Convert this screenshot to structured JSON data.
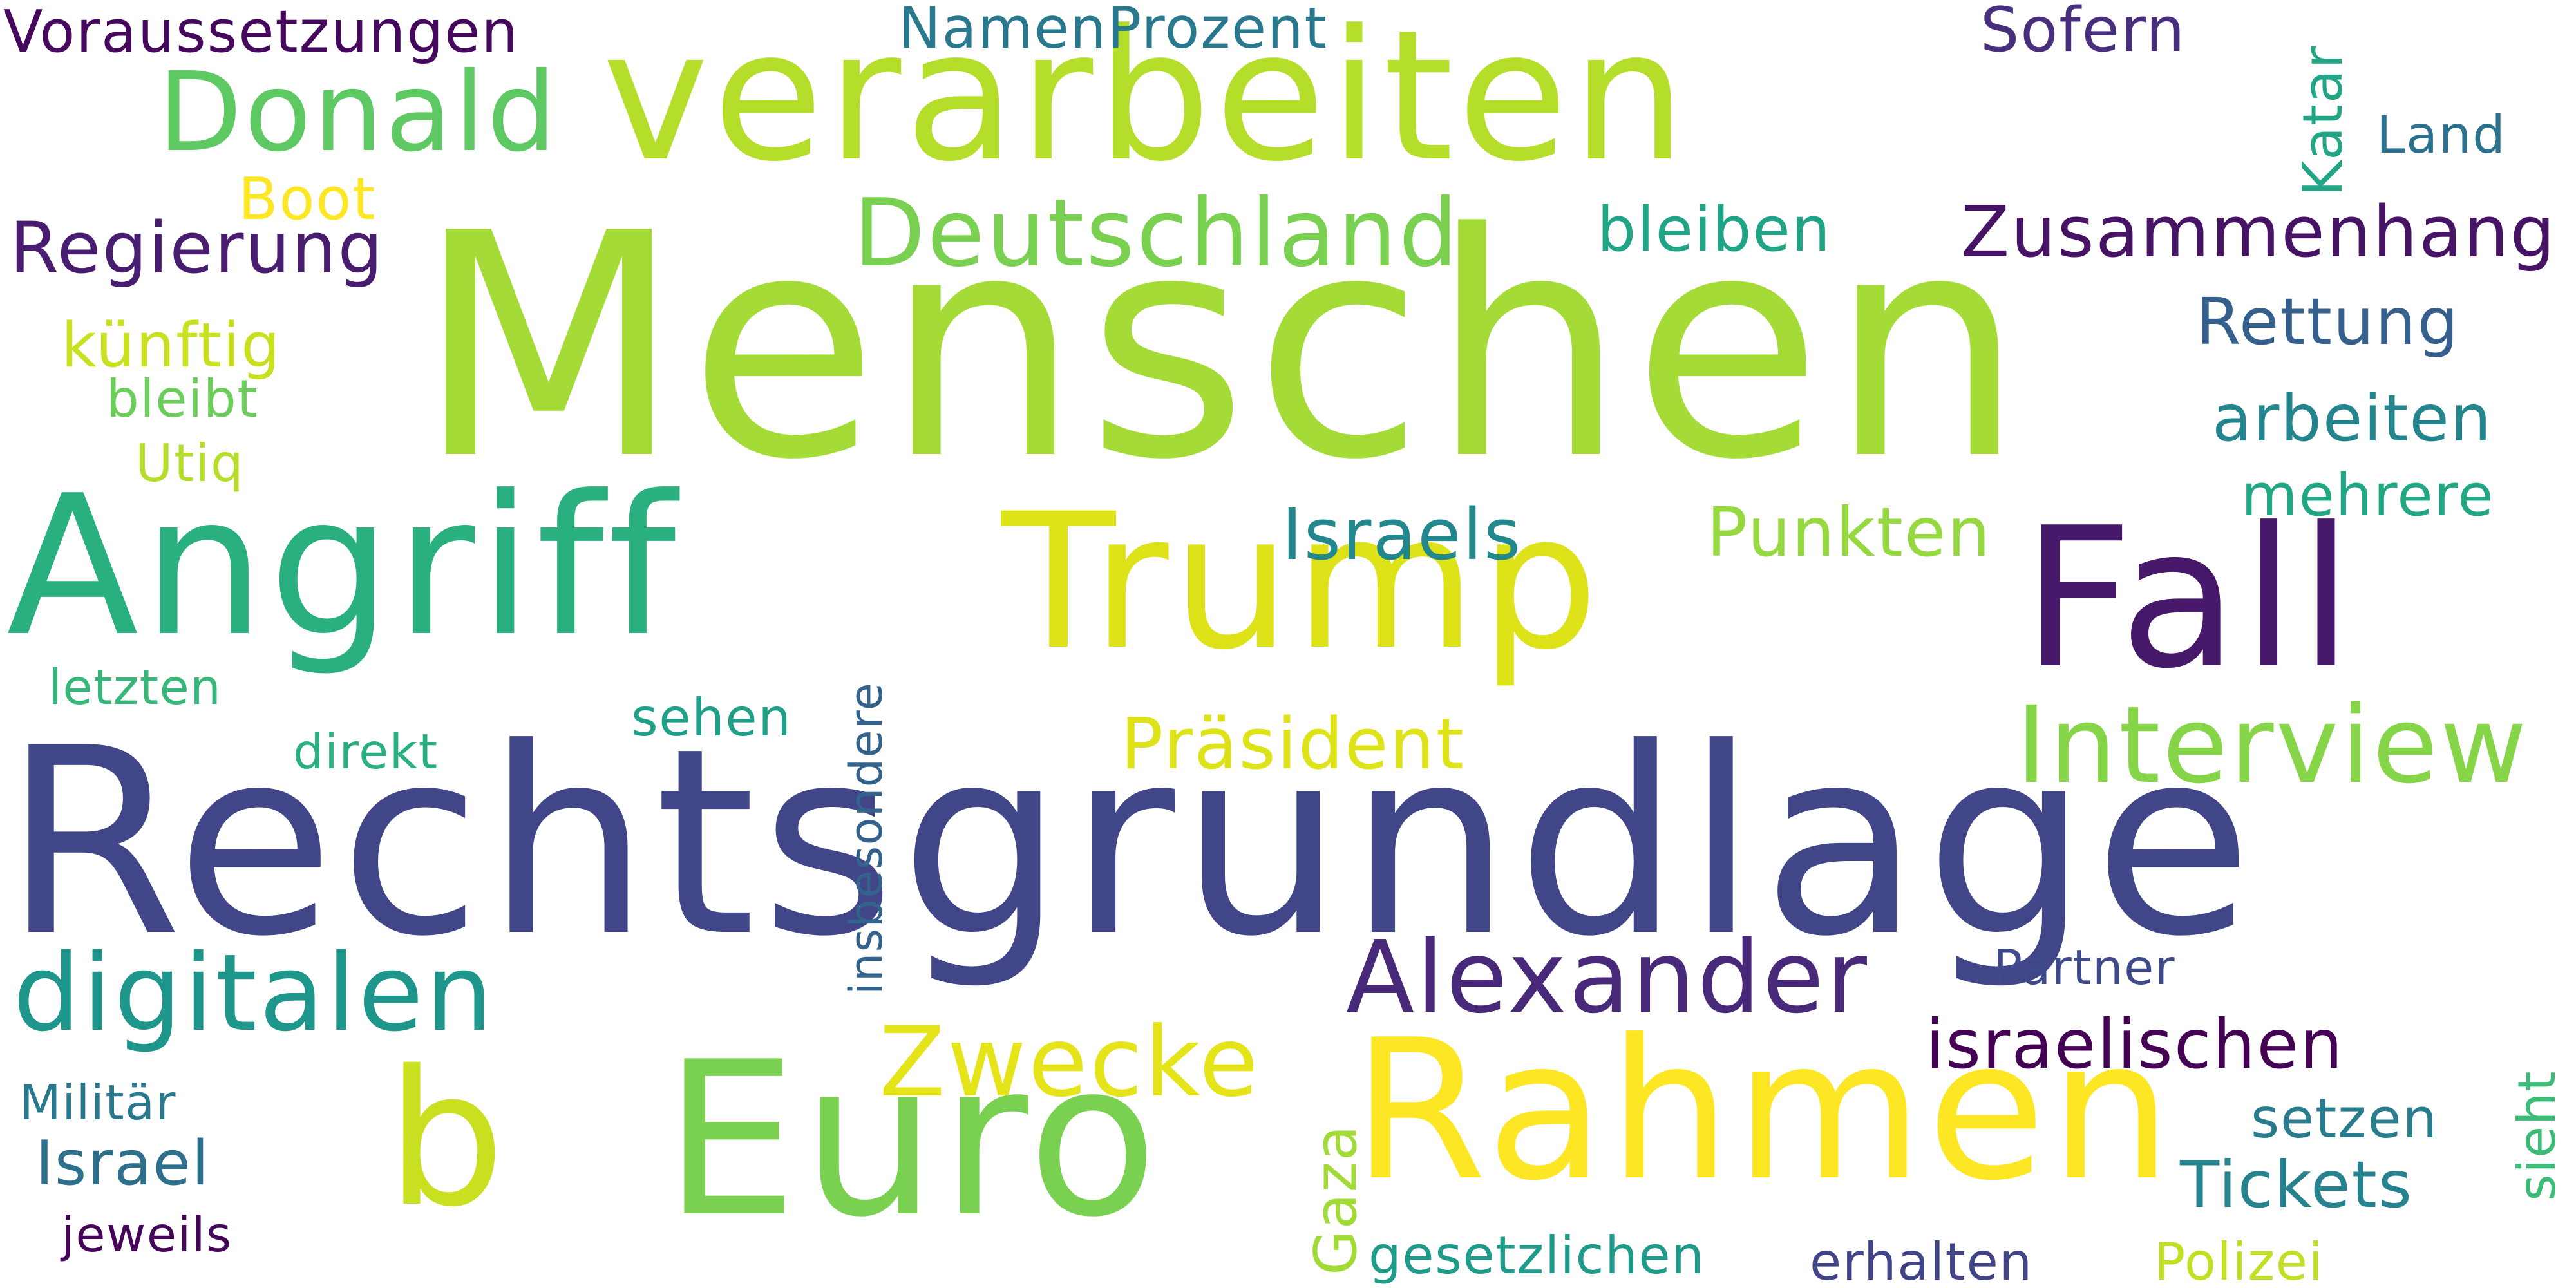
{
  "words": {
    "menschen": {
      "text": "Menschen",
      "color": "#a5db36"
    },
    "rechtsgrundlage": {
      "text": "Rechtsgrundlage",
      "color": "#404688"
    },
    "verarbeiten": {
      "text": "verarbeiten",
      "color": "#b5de2b"
    },
    "angriff": {
      "text": "Angriff",
      "color": "#2ab07f"
    },
    "trump": {
      "text": "Trump",
      "color": "#dde318"
    },
    "fall": {
      "text": "Fall",
      "color": "#46196b"
    },
    "euro": {
      "text": "Euro",
      "color": "#7ad151"
    },
    "b": {
      "text": "b",
      "color": "#c8e020"
    },
    "rahmen": {
      "text": "Rahmen",
      "color": "#fde725"
    },
    "donald": {
      "text": "Donald",
      "color": "#5ec962"
    },
    "deutschland": {
      "text": "Deutschland",
      "color": "#7ad151"
    },
    "digitalen": {
      "text": "digitalen",
      "color": "#1f968b"
    },
    "alexander": {
      "text": "Alexander",
      "color": "#482878"
    },
    "interview": {
      "text": "Interview",
      "color": "#86d549"
    },
    "zwecke": {
      "text": "Zwecke",
      "color": "#e5e419"
    },
    "praesident": {
      "text": "Präsident",
      "color": "#dde318"
    },
    "israels": {
      "text": "Israels",
      "color": "#23888e"
    },
    "punkten": {
      "text": "Punkten",
      "color": "#95d840"
    },
    "israelischen": {
      "text": "israelischen",
      "color": "#440154"
    },
    "regierung": {
      "text": "Regierung",
      "color": "#481d6f"
    },
    "zusammenhang": {
      "text": "Zusammenhang",
      "color": "#471365"
    },
    "voraussetzungen": {
      "text": "Voraussetzungen",
      "color": "#46085c"
    },
    "namenprozent": {
      "text": "NamenProzent",
      "color": "#2a788e"
    },
    "sofern": {
      "text": "Sofern",
      "color": "#472f7d"
    },
    "katar": {
      "text": "Katar",
      "color": "#21a585"
    },
    "land": {
      "text": "Land",
      "color": "#2c728e"
    },
    "bleiben": {
      "text": "bleiben",
      "color": "#20a486"
    },
    "rettung": {
      "text": "Rettung",
      "color": "#355f8d"
    },
    "arbeiten": {
      "text": "arbeiten",
      "color": "#25858e"
    },
    "mehrere": {
      "text": "mehrere",
      "color": "#22a785"
    },
    "boot": {
      "text": "Boot",
      "color": "#fde725"
    },
    "kuenftig": {
      "text": "künftig",
      "color": "#c8e020"
    },
    "bleibt": {
      "text": "bleibt",
      "color": "#6ccd5a"
    },
    "utiq": {
      "text": "Utiq",
      "color": "#b5de2b"
    },
    "letzten": {
      "text": "letzten",
      "color": "#35b779"
    },
    "sehen": {
      "text": "sehen",
      "color": "#1fa088"
    },
    "direkt": {
      "text": "direkt",
      "color": "#2ab07f"
    },
    "insbesondere": {
      "text": "insbesondere",
      "color": "#33638d"
    },
    "partner": {
      "text": "Partner",
      "color": "#3e4a89"
    },
    "militaer": {
      "text": "Militär",
      "color": "#2a788e"
    },
    "israel": {
      "text": "Israel",
      "color": "#2d708e"
    },
    "jeweils": {
      "text": "jeweils",
      "color": "#450559"
    },
    "gaza": {
      "text": "Gaza",
      "color": "#a2da37"
    },
    "gesetzlichen": {
      "text": "gesetzlichen",
      "color": "#1e9b8a"
    },
    "erhalten": {
      "text": "erhalten",
      "color": "#414487"
    },
    "polizei": {
      "text": "Polizei",
      "color": "#c2df23"
    },
    "tickets": {
      "text": "Tickets",
      "color": "#26828e"
    },
    "setzen": {
      "text": "setzen",
      "color": "#287c8e"
    },
    "sieht": {
      "text": "sieht",
      "color": "#3bbb75"
    }
  }
}
